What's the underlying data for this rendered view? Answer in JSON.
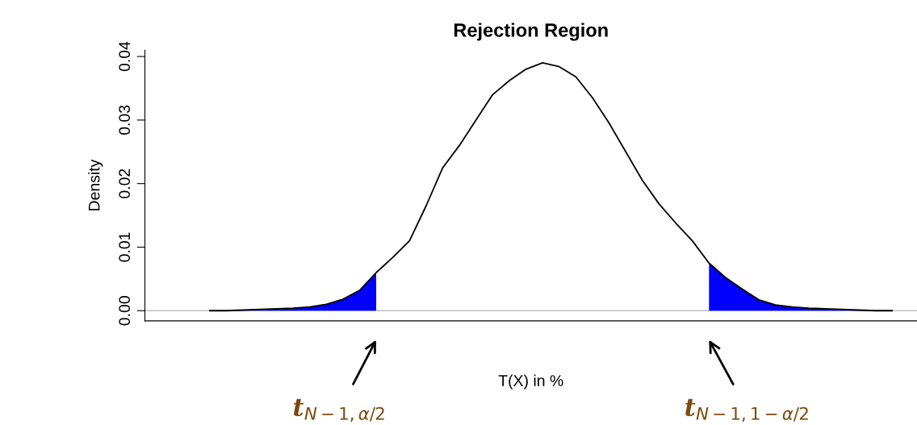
{
  "chart_data": {
    "type": "line",
    "title": "Rejection Region",
    "xlabel": "T(X) in %",
    "ylabel": "Density",
    "categories": [
      null,
      null,
      null,
      null,
      null,
      null,
      null,
      null,
      null,
      null,
      null,
      null,
      null,
      null,
      null,
      null,
      null,
      null,
      null,
      null,
      null,
      null,
      null,
      null,
      null,
      null,
      null,
      null,
      null,
      null,
      null,
      null,
      null,
      null,
      null,
      null,
      null,
      null,
      null,
      null,
      null,
      null
    ],
    "series": [
      {
        "color": "#000000",
        "values": [
          0,
          0,
          0.0001,
          0.0002,
          0.0003,
          0.0004,
          0.0006,
          0.001,
          0.0018,
          0.0032,
          0.006,
          0.0084,
          0.011,
          0.0165,
          0.0225,
          0.026,
          0.03,
          0.034,
          0.0362,
          0.038,
          0.039,
          0.0384,
          0.0368,
          0.0335,
          0.0295,
          0.025,
          0.0205,
          0.0168,
          0.0138,
          0.011,
          0.0075,
          0.0052,
          0.0034,
          0.0017,
          0.0009,
          0.0006,
          0.0004,
          0.0003,
          0.0002,
          0.0001,
          0,
          0
        ]
      },
      {
        "type": "area",
        "color": "#0000ff",
        "values": [
          0,
          0,
          0.0001,
          0.0002,
          0.0003,
          0.0004,
          0.0006,
          0.001,
          0.0018,
          0.0032,
          0.006,
          null,
          null,
          null,
          null,
          null,
          null,
          null,
          null,
          null,
          null,
          null,
          null,
          null,
          null,
          null,
          null,
          null,
          null,
          null,
          null,
          null,
          null,
          null,
          null,
          null,
          null,
          null,
          null,
          null,
          null,
          null
        ]
      },
      {
        "type": "area",
        "color": "#0000ff",
        "values": [
          null,
          null,
          null,
          null,
          null,
          null,
          null,
          null,
          null,
          null,
          null,
          null,
          null,
          null,
          null,
          null,
          null,
          null,
          null,
          null,
          null,
          null,
          null,
          null,
          null,
          null,
          null,
          null,
          null,
          null,
          0.0075,
          0.0052,
          0.0034,
          0.0017,
          0.0009,
          0.0006,
          0.0004,
          0.0003,
          0.0002,
          0.0001,
          0,
          0
        ]
      }
    ],
    "ylim": [
      -0.0016,
      0.041
    ],
    "yticks": [
      {
        "value": 0,
        "label": "0.00"
      },
      {
        "value": 0.01,
        "label": "0.01"
      },
      {
        "value": 0.02,
        "label": "0.02"
      },
      {
        "value": 0.03,
        "label": "0.03"
      },
      {
        "value": 0.04,
        "label": "0.04"
      }
    ],
    "ref_lines": [
      {
        "axis": "y",
        "value": 0,
        "color": "#bebebe"
      }
    ],
    "annotations": [
      "t$_{N−1,α/2}$",
      "t$_{N−1,1−α/2}$"
    ],
    "grid": false,
    "legend": false
  }
}
